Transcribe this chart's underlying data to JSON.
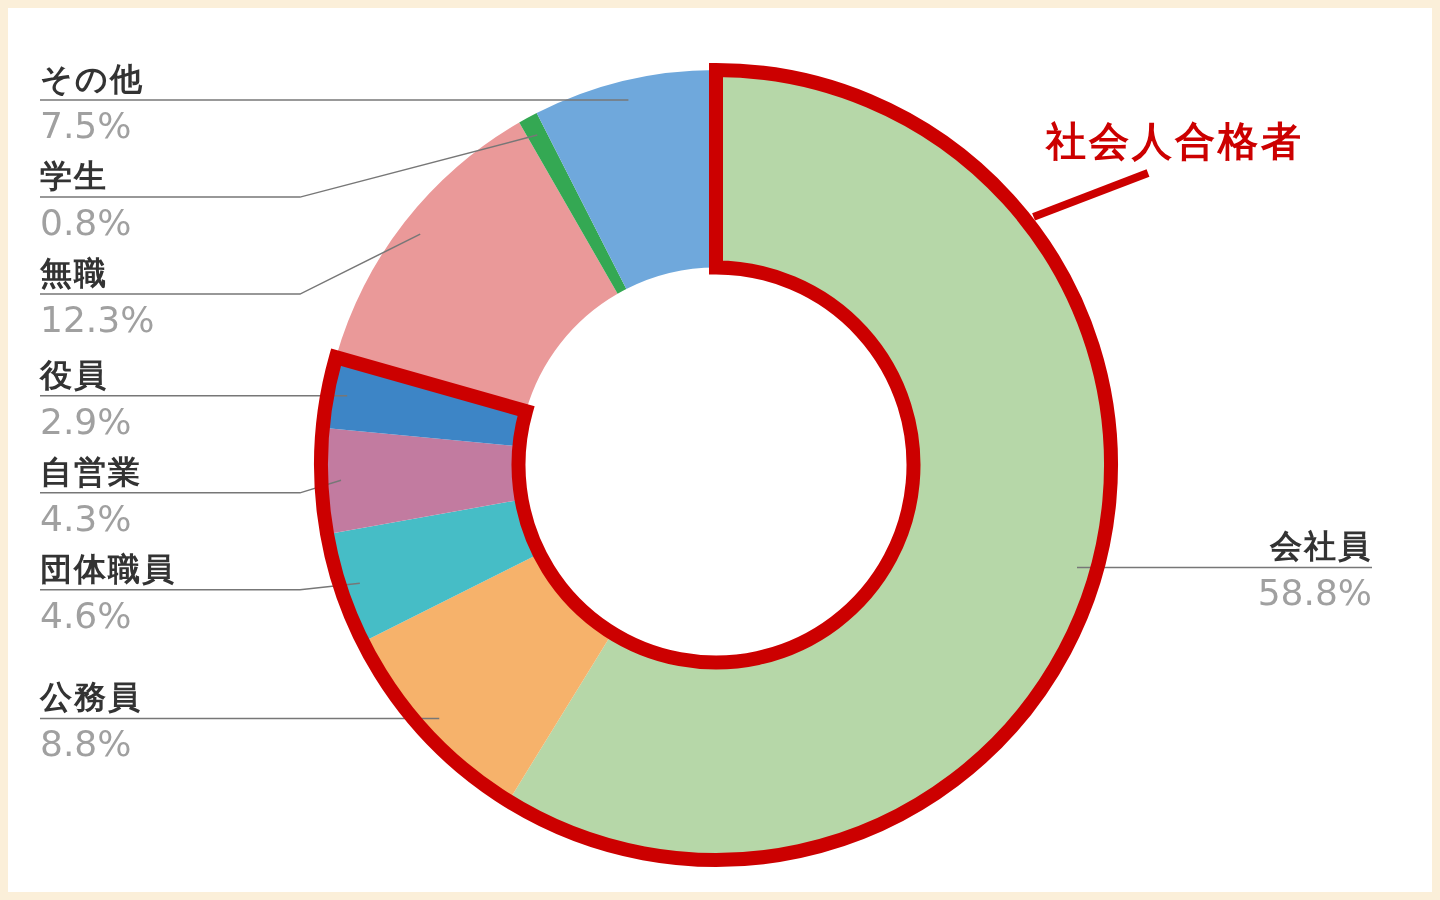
{
  "chart_data": {
    "type": "donut",
    "categories": [
      "会社員",
      "公務員",
      "団体職員",
      "自営業",
      "役員",
      "無職",
      "学生",
      "その他"
    ],
    "values": [
      58.8,
      8.8,
      4.6,
      4.3,
      2.9,
      12.3,
      0.8,
      7.5
    ],
    "value_labels": [
      "58.8%",
      "8.8%",
      "4.6%",
      "4.3%",
      "2.9%",
      "12.3%",
      "0.8%",
      "7.5%"
    ],
    "colors": [
      "#b6d7a8",
      "#f6b26b",
      "#46bdc6",
      "#c27ba0",
      "#3d85c6",
      "#ea9999",
      "#34a853",
      "#6fa8dc"
    ],
    "annotations": [
      "社会人合格者"
    ]
  }
}
